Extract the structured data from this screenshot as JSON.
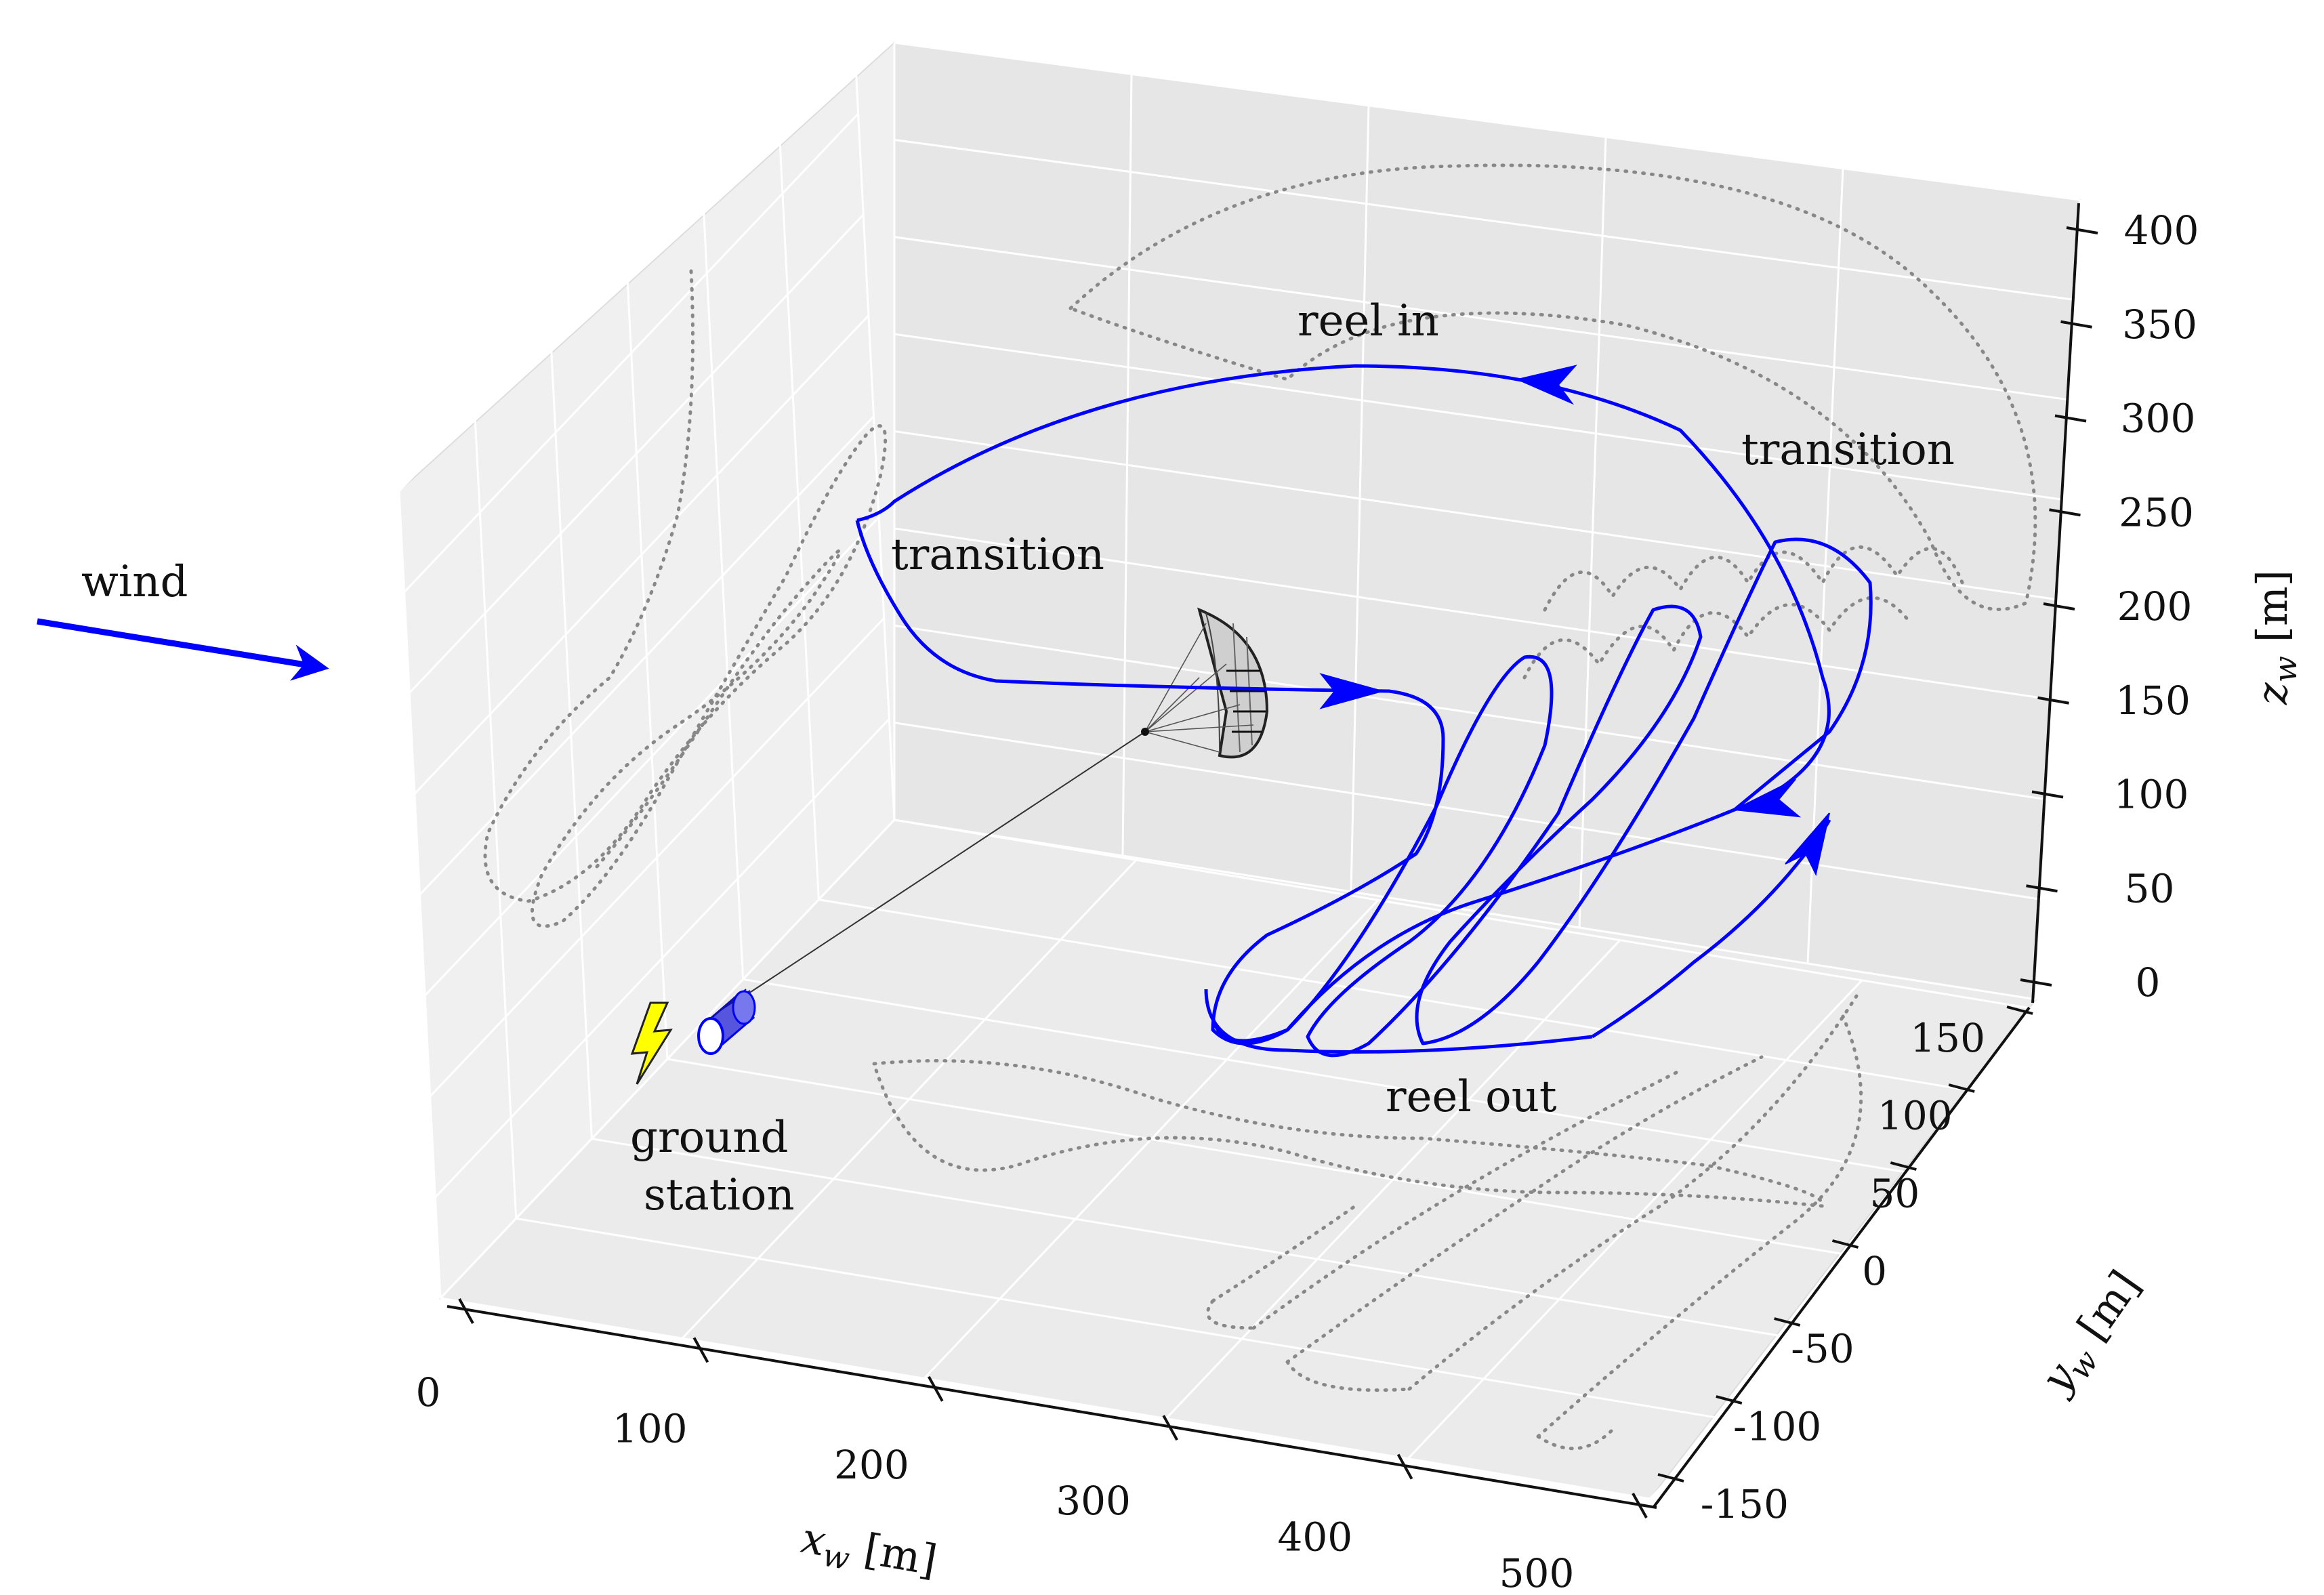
{
  "chart_data": {
    "type": "line3d",
    "title": "",
    "xlabel": "x_w [m]",
    "ylabel": "y_w [m]",
    "zlabel": "z_w [m]",
    "xlabel_parts": {
      "sym": "x",
      "sub": "w",
      "unit": " [m]"
    },
    "ylabel_parts": {
      "sym": "y",
      "sub": "w",
      "unit": " [m]"
    },
    "zlabel_parts": {
      "sym": "z",
      "sub": "w",
      "unit": " [m]"
    },
    "xlim": [
      0,
      500
    ],
    "ylim": [
      -150,
      150
    ],
    "zlim": [
      0,
      400
    ],
    "xticks": [
      0,
      100,
      200,
      300,
      400,
      500
    ],
    "xtick_labels": [
      "0",
      "100",
      "200",
      "300",
      "400",
      "500"
    ],
    "yticks": [
      -150,
      -100,
      -50,
      0,
      50,
      100,
      150
    ],
    "ytick_labels": [
      "-150",
      "-100",
      "-50",
      "0",
      "50",
      "100",
      "150"
    ],
    "zticks": [
      0,
      50,
      100,
      150,
      200,
      250,
      300,
      350,
      400
    ],
    "ztick_labels": [
      "0",
      "50",
      "100",
      "150",
      "200",
      "250",
      "300",
      "350",
      "400"
    ],
    "grid": true,
    "series": [
      {
        "name": "kite trajectory",
        "style": "solid",
        "color": "#0000ff"
      },
      {
        "name": "projection on x-z plane",
        "style": "dotted",
        "color": "#888888"
      },
      {
        "name": "projection on x-y plane",
        "style": "dotted",
        "color": "#888888"
      },
      {
        "name": "projection on y-z plane",
        "style": "dotted",
        "color": "#888888"
      }
    ],
    "annotations": {
      "wind": "wind",
      "ground_station_line1": "ground",
      "ground_station_line2": "station",
      "reel_in": "reel in",
      "reel_out": "reel out",
      "transition_left": "transition",
      "transition_right": "transition"
    },
    "colors": {
      "trajectory": "#0000ff",
      "projection": "#888888",
      "pane_back": "#e6e6e6",
      "pane_side": "#f0f0f0",
      "pane_floor": "#ebebeb",
      "grid": "#ffffff",
      "lightning": "#ffff00"
    },
    "icons": [
      "lightning-icon",
      "drum-icon",
      "kite-icon"
    ]
  }
}
